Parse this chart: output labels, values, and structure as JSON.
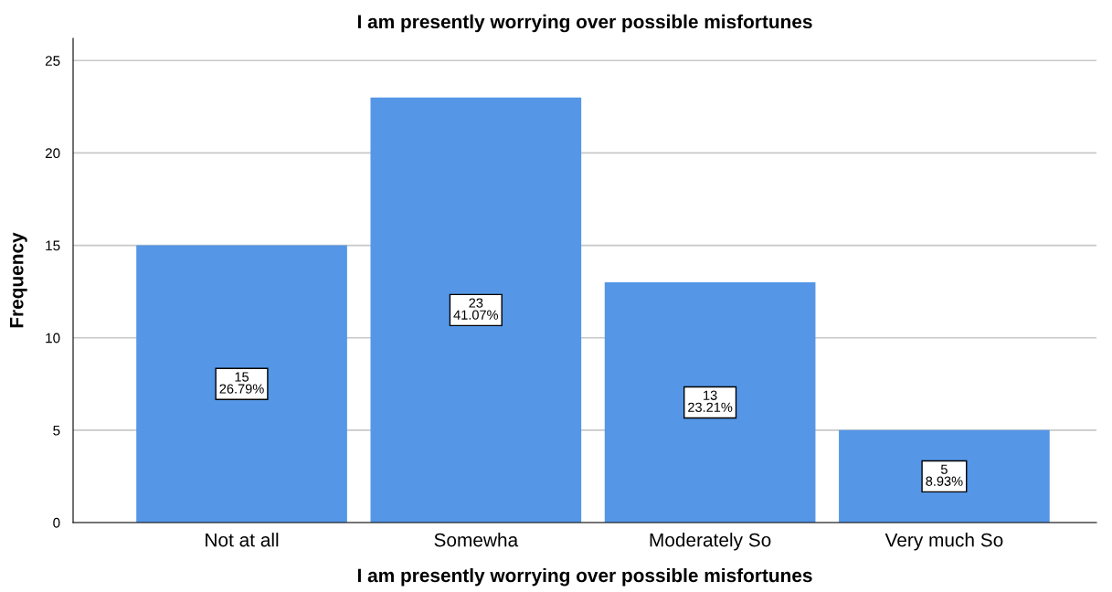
{
  "chart_data": {
    "type": "bar",
    "title": "I am presently worrying over possible misfortunes",
    "xlabel": "I am presently worrying over possible misfortunes",
    "ylabel": "Frequency",
    "categories": [
      "Not at all",
      "Somewha",
      "Moderately So",
      "Very much So"
    ],
    "values": [
      15,
      23,
      13,
      5
    ],
    "color": "#5596e6",
    "value_labels": [
      "15\n26.79%",
      "23\n41.07%",
      "13\n23.21%",
      "5\n8.93%"
    ],
    "ylim": [
      0,
      26.2
    ],
    "yticks": [
      0,
      5,
      10,
      15,
      20,
      25
    ],
    "grid": "y"
  }
}
